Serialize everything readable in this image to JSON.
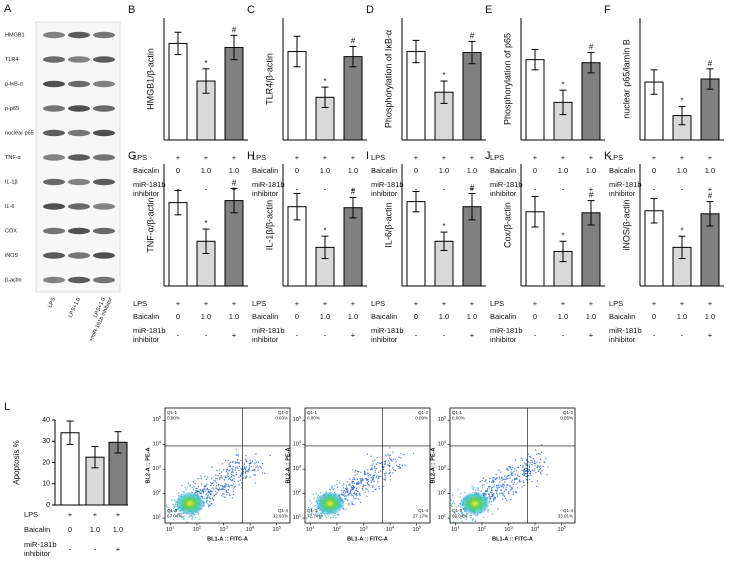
{
  "blot": {
    "label": "A",
    "bands": [
      "HMGB1",
      "TLR4",
      "p-IκB-α",
      "p-p65",
      "nuclear p65",
      "TNF-α",
      "IL-1β",
      "IL-6",
      "COX",
      "iNOS",
      "β-actin"
    ],
    "lanes": [
      [
        "LPS"
      ],
      [
        "LPS+1.0"
      ],
      [
        "LPS+1.0",
        "+miR-181b inhibitor"
      ]
    ]
  },
  "chart_data": [
    {
      "type": "bar",
      "label": "B",
      "ylabel": "HMGB1/β-actin",
      "values": [
        0.95,
        0.58,
        0.91
      ],
      "errors": [
        0.11,
        0.12,
        0.12
      ],
      "annotations": [
        null,
        "*",
        "#"
      ],
      "colors": [
        "#ffffff",
        "#d9d9d9",
        "#808080"
      ],
      "ylim": [
        0,
        1.2
      ],
      "conditions": [
        {
          "label": [
            "LPS"
          ],
          "cells": [
            "+",
            "+",
            "+"
          ]
        },
        {
          "label": [
            "Baicalin"
          ],
          "cells": [
            "0",
            "1.0",
            "1.0"
          ]
        },
        {
          "label": [
            "miR-181b",
            "inhibitor"
          ],
          "cells": [
            "-",
            "-",
            "+"
          ]
        }
      ]
    },
    {
      "type": "bar",
      "label": "C",
      "ylabel": "TLR4/β-actin",
      "values": [
        0.87,
        0.42,
        0.82
      ],
      "errors": [
        0.15,
        0.1,
        0.1
      ],
      "annotations": [
        null,
        "*",
        "#"
      ],
      "colors": [
        "#ffffff",
        "#d9d9d9",
        "#808080"
      ],
      "ylim": [
        0,
        1.2
      ],
      "conditions": [
        {
          "label": [
            "LPS"
          ],
          "cells": [
            "+",
            "+",
            "+"
          ]
        },
        {
          "label": [
            "Baicalin"
          ],
          "cells": [
            "0",
            "1.0",
            "1.0"
          ]
        },
        {
          "label": [
            "miR-181b",
            "inhibitor"
          ],
          "cells": [
            "-",
            "-",
            "+"
          ]
        }
      ]
    },
    {
      "type": "bar",
      "label": "D",
      "ylabel": "Phosphorylation of IκB-α",
      "values": [
        0.87,
        0.47,
        0.86
      ],
      "errors": [
        0.11,
        0.11,
        0.11
      ],
      "annotations": [
        null,
        "*",
        "#"
      ],
      "colors": [
        "#ffffff",
        "#d9d9d9",
        "#808080"
      ],
      "ylim": [
        0,
        1.2
      ],
      "conditions": [
        {
          "label": [
            "LPS"
          ],
          "cells": [
            "+",
            "+",
            "+"
          ]
        },
        {
          "label": [
            "Baicalin"
          ],
          "cells": [
            "0",
            "1.0",
            "1.0"
          ]
        },
        {
          "label": [
            "miR-181b",
            "inhibitor"
          ],
          "cells": [
            "-",
            "-",
            "+"
          ]
        }
      ]
    },
    {
      "type": "bar",
      "label": "E",
      "ylabel": "Phosphorylation of p65",
      "values": [
        0.79,
        0.37,
        0.76
      ],
      "errors": [
        0.1,
        0.12,
        0.1
      ],
      "annotations": [
        null,
        "*",
        "#"
      ],
      "colors": [
        "#ffffff",
        "#d9d9d9",
        "#808080"
      ],
      "ylim": [
        0,
        1.2
      ],
      "conditions": [
        {
          "label": [
            "LPS"
          ],
          "cells": [
            "+",
            "+",
            "+"
          ]
        },
        {
          "label": [
            "Baicalin"
          ],
          "cells": [
            "0",
            "1.0",
            "1.0"
          ]
        },
        {
          "label": [
            "miR-181b",
            "inhibitor"
          ],
          "cells": [
            "-",
            "-",
            "+"
          ]
        }
      ]
    },
    {
      "type": "bar",
      "label": "F",
      "ylabel": "nuclear p65/lamin B",
      "values": [
        0.57,
        0.24,
        0.6
      ],
      "errors": [
        0.12,
        0.09,
        0.1
      ],
      "annotations": [
        null,
        "*",
        "#"
      ],
      "colors": [
        "#ffffff",
        "#d9d9d9",
        "#808080"
      ],
      "ylim": [
        0,
        1.2
      ],
      "conditions": [
        {
          "label": [
            "LPS"
          ],
          "cells": [
            "+",
            "+",
            "+"
          ]
        },
        {
          "label": [
            "Baicalin"
          ],
          "cells": [
            "0",
            "1.0",
            "1.0"
          ]
        },
        {
          "label": [
            "miR-181b",
            "inhibitor"
          ],
          "cells": [
            "-",
            "-",
            "+"
          ]
        }
      ]
    },
    {
      "type": "bar",
      "label": "G",
      "ylabel": "TNF-α/β-actin",
      "values": [
        0.82,
        0.44,
        0.84
      ],
      "errors": [
        0.12,
        0.12,
        0.12
      ],
      "annotations": [
        null,
        "*",
        "#"
      ],
      "colors": [
        "#ffffff",
        "#d9d9d9",
        "#808080"
      ],
      "ylim": [
        0,
        1.2
      ],
      "conditions": [
        {
          "label": [
            "LPS"
          ],
          "cells": [
            "+",
            "+",
            "+"
          ]
        },
        {
          "label": [
            "Baicalin"
          ],
          "cells": [
            "0",
            "1.0",
            "1.0"
          ]
        },
        {
          "label": [
            "miR-181b",
            "inhibitor"
          ],
          "cells": [
            "-",
            "-",
            "+"
          ]
        }
      ]
    },
    {
      "type": "bar",
      "label": "H",
      "ylabel": "IL-1β/β-actin",
      "values": [
        0.78,
        0.38,
        0.77
      ],
      "errors": [
        0.13,
        0.11,
        0.1
      ],
      "annotations": [
        null,
        "*",
        "#"
      ],
      "colors": [
        "#ffffff",
        "#d9d9d9",
        "#808080"
      ],
      "ylim": [
        0,
        1.2
      ],
      "conditions": [
        {
          "label": [
            "LPS"
          ],
          "cells": [
            "+",
            "+",
            "+"
          ]
        },
        {
          "label": [
            "Baicalin"
          ],
          "cells": [
            "0",
            "1.0",
            "1.0"
          ]
        },
        {
          "label": [
            "miR-181b",
            "inhibitor"
          ],
          "cells": [
            "-",
            "-",
            "+"
          ]
        }
      ]
    },
    {
      "type": "bar",
      "label": "I",
      "ylabel": "IL-6/β-actin",
      "values": [
        0.83,
        0.44,
        0.78
      ],
      "errors": [
        0.1,
        0.09,
        0.13
      ],
      "annotations": [
        null,
        "*",
        "#"
      ],
      "colors": [
        "#ffffff",
        "#d9d9d9",
        "#808080"
      ],
      "ylim": [
        0,
        1.2
      ],
      "conditions": [
        {
          "label": [
            "LPS"
          ],
          "cells": [
            "+",
            "+",
            "+"
          ]
        },
        {
          "label": [
            "Baicalin"
          ],
          "cells": [
            "0",
            "1.0",
            "1.0"
          ]
        },
        {
          "label": [
            "miR-181b",
            "inhibitor"
          ],
          "cells": [
            "-",
            "-",
            "+"
          ]
        }
      ]
    },
    {
      "type": "bar",
      "label": "J",
      "ylabel": "Cox/β-actin",
      "values": [
        0.73,
        0.34,
        0.72
      ],
      "errors": [
        0.15,
        0.1,
        0.12
      ],
      "annotations": [
        null,
        "*",
        "#"
      ],
      "colors": [
        "#ffffff",
        "#d9d9d9",
        "#808080"
      ],
      "ylim": [
        0,
        1.2
      ],
      "conditions": [
        {
          "label": [
            "LPS"
          ],
          "cells": [
            "+",
            "+",
            "+"
          ]
        },
        {
          "label": [
            "Baicalin"
          ],
          "cells": [
            "0",
            "1.0",
            "1.0"
          ]
        },
        {
          "label": [
            "miR-181b",
            "inhibitor"
          ],
          "cells": [
            "-",
            "-",
            "+"
          ]
        }
      ]
    },
    {
      "type": "bar",
      "label": "K",
      "ylabel": "iNOS/β-actin",
      "values": [
        0.74,
        0.38,
        0.71
      ],
      "errors": [
        0.12,
        0.11,
        0.12
      ],
      "annotations": [
        null,
        "*",
        "#"
      ],
      "colors": [
        "#ffffff",
        "#d9d9d9",
        "#808080"
      ],
      "ylim": [
        0,
        1.2
      ],
      "conditions": [
        {
          "label": [
            "LPS"
          ],
          "cells": [
            "+",
            "+",
            "+"
          ]
        },
        {
          "label": [
            "Baicalin"
          ],
          "cells": [
            "0",
            "1.0",
            "1.0"
          ]
        },
        {
          "label": [
            "miR-181b",
            "inhibitor"
          ],
          "cells": [
            "-",
            "-",
            "+"
          ]
        }
      ]
    },
    {
      "type": "bar",
      "label": "L",
      "ylabel": "Apoptosis %",
      "values": [
        34,
        22.5,
        29.5
      ],
      "errors": [
        5.5,
        5,
        5
      ],
      "colors": [
        "#ffffff",
        "#d9d9d9",
        "#808080"
      ],
      "ylim": [
        0,
        40
      ],
      "yticks": [
        0,
        10,
        20,
        30,
        40
      ],
      "conditions": [
        {
          "label": [
            "LPS"
          ],
          "cells": [
            "+",
            "+",
            "+"
          ]
        },
        {
          "label": [
            "Baicalin"
          ],
          "cells": [
            "0",
            "1.0",
            "1.0"
          ]
        },
        {
          "label": [
            "miR-181b",
            "inhibitor"
          ],
          "cells": [
            "-",
            "-",
            "+"
          ]
        }
      ]
    }
  ],
  "flow_plots": [
    {
      "xlabel": "BL1-A :: FITC-A",
      "ylabel": "BL2-A :: PE-A",
      "tick_base": "10",
      "tick_exponents": [
        1,
        2,
        3,
        4,
        5
      ],
      "quadrants": [
        {
          "name": "Q1-1",
          "percent": "0.00%"
        },
        {
          "name": "Q1-2",
          "percent": "0.03%"
        },
        {
          "name": "Q1-3",
          "percent": "67.04%"
        },
        {
          "name": "Q1-4",
          "percent": "32.93%"
        }
      ]
    },
    {
      "xlabel": "BL1-A :: FITC-A",
      "ylabel": "BL2-A :: PE-A",
      "tick_base": "10",
      "tick_exponents": [
        1,
        2,
        3,
        4,
        5
      ],
      "quadrants": [
        {
          "name": "Q1-1",
          "percent": "0.00%"
        },
        {
          "name": "Q1-2",
          "percent": "0.09%"
        },
        {
          "name": "Q1-3",
          "percent": "72.74%"
        },
        {
          "name": "Q1-4",
          "percent": "27.17%"
        }
      ]
    },
    {
      "xlabel": "BL1-A :: FITC-A",
      "ylabel": "BL2-A :: PE-A",
      "tick_base": "10",
      "tick_exponents": [
        1,
        2,
        3,
        4,
        5
      ],
      "quadrants": [
        {
          "name": "Q1-1",
          "percent": "0.00%"
        },
        {
          "name": "Q1-2",
          "percent": "0.05%"
        },
        {
          "name": "Q1-3",
          "percent": "66.04%"
        },
        {
          "name": "Q1-4",
          "percent": "33.91%"
        }
      ]
    }
  ]
}
